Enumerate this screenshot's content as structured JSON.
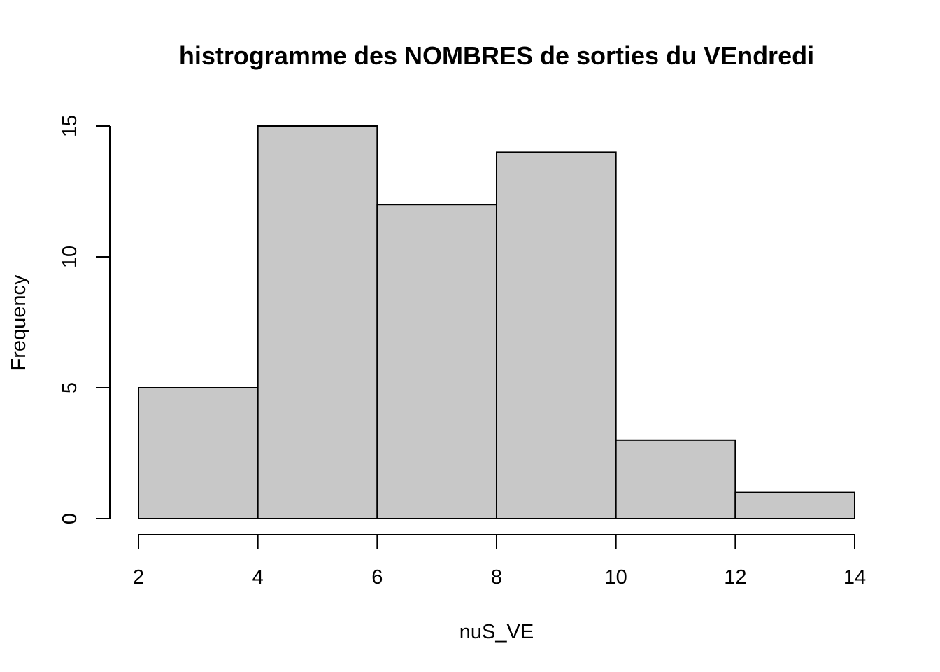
{
  "chart_data": {
    "type": "bar",
    "title": "histrogramme des NOMBRES de sorties du VEndredi",
    "xlabel": "nuS_VE",
    "ylabel": "Frequency",
    "bins": [
      {
        "from": 2,
        "to": 4,
        "count": 5
      },
      {
        "from": 4,
        "to": 6,
        "count": 15
      },
      {
        "from": 6,
        "to": 8,
        "count": 12
      },
      {
        "from": 8,
        "to": 10,
        "count": 14
      },
      {
        "from": 10,
        "to": 12,
        "count": 3
      },
      {
        "from": 12,
        "to": 14,
        "count": 1
      }
    ],
    "xlim": [
      2,
      14
    ],
    "ylim": [
      0,
      15
    ],
    "x_ticks": [
      "2",
      "4",
      "6",
      "8",
      "10",
      "12",
      "14"
    ],
    "y_ticks": [
      "0",
      "5",
      "10",
      "15"
    ],
    "bar_color": "#c8c8c8",
    "grid": false,
    "legend": "none"
  }
}
